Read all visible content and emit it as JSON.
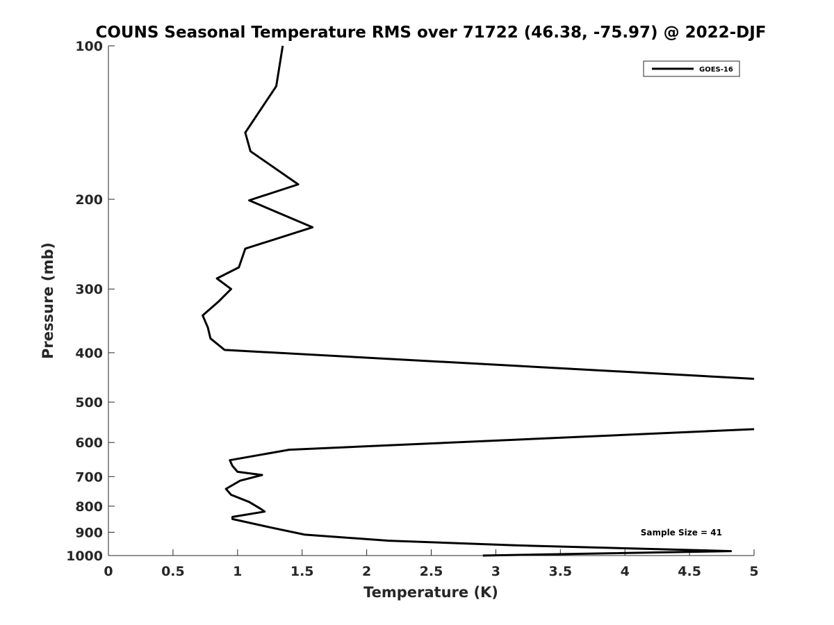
{
  "chart_data": {
    "type": "line",
    "title": "COUNS Seasonal Temperature RMS over 71722 (46.38, -75.97) @ 2022-DJF",
    "xlabel": "Temperature (K)",
    "ylabel": "Pressure (mb)",
    "xlim": [
      0,
      5
    ],
    "ylim": [
      100,
      1000
    ],
    "y_scale": "log",
    "y_reversed": true,
    "grid": false,
    "legend_position": "top-right",
    "x_ticks": [
      0,
      0.5,
      1,
      1.5,
      2,
      2.5,
      3,
      3.5,
      4,
      4.5,
      5
    ],
    "x_tick_labels": [
      "0",
      "0.5",
      "1",
      "1.5",
      "2",
      "2.5",
      "3",
      "3.5",
      "4",
      "4.5",
      "5"
    ],
    "y_ticks": [
      100,
      200,
      300,
      400,
      500,
      600,
      700,
      800,
      900,
      1000
    ],
    "y_tick_labels": [
      "100",
      "200",
      "300",
      "400",
      "500",
      "600",
      "700",
      "800",
      "900",
      "1000"
    ],
    "series": [
      {
        "name": "GOES-16",
        "color": "#000000",
        "x": [
          1.35,
          1.3,
          1.06,
          1.1,
          1.47,
          1.09,
          1.58,
          1.06,
          1.01,
          0.84,
          0.95,
          0.85,
          0.73,
          0.77,
          0.79,
          0.9,
          5.0,
          null,
          5.0,
          1.4,
          0.94,
          0.96,
          1.0,
          1.19,
          1.02,
          0.91,
          0.95,
          1.09,
          1.18,
          1.21,
          0.96,
          0.96,
          1.25,
          1.52,
          2.17,
          3.15,
          4.82,
          2.9
        ],
        "y": [
          100,
          120,
          148,
          161,
          187,
          201,
          227,
          250,
          272,
          286,
          300,
          318,
          338,
          357,
          375,
          395,
          450,
          null,
          565,
          620,
          650,
          667,
          685,
          695,
          713,
          740,
          760,
          785,
          810,
          820,
          840,
          848,
          880,
          910,
          935,
          955,
          980,
          1000
        ]
      }
    ],
    "annotations": [
      "Sample Size = 41"
    ]
  }
}
